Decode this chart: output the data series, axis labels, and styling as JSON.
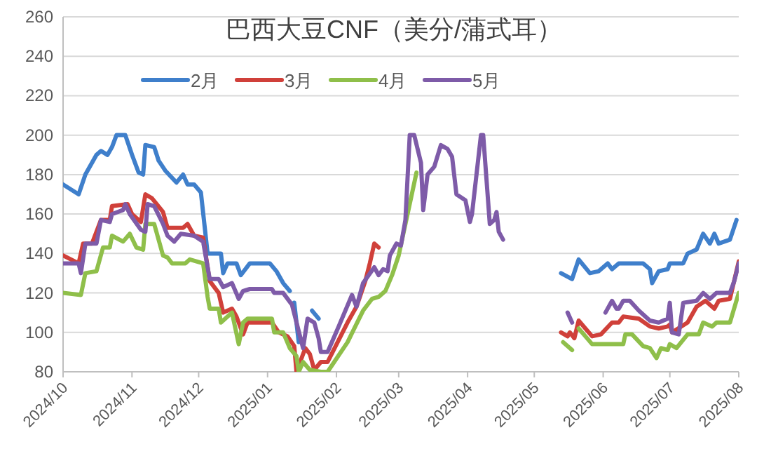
{
  "chart_data": {
    "type": "line",
    "title": "巴西大豆CNF（美分/蒲式耳）",
    "legend": "top",
    "grid": "y",
    "line_style": "solid",
    "marker": "none",
    "xlim": [
      "2024-10-01",
      "2025-08-01"
    ],
    "xticks": [
      {
        "value": "2024-10-01",
        "label": "2024/10"
      },
      {
        "value": "2024-11-01",
        "label": "2024/11"
      },
      {
        "value": "2024-12-01",
        "label": "2024/12"
      },
      {
        "value": "2025-01-01",
        "label": "2025/01"
      },
      {
        "value": "2025-02-01",
        "label": "2025/02"
      },
      {
        "value": "2025-03-01",
        "label": "2025/03"
      },
      {
        "value": "2025-04-01",
        "label": "2025/04"
      },
      {
        "value": "2025-05-01",
        "label": "2025/05"
      },
      {
        "value": "2025-06-01",
        "label": "2025/06"
      },
      {
        "value": "2025-07-01",
        "label": "2025/07"
      },
      {
        "value": "2025-08-01",
        "label": "2025/08"
      }
    ],
    "ylim": [
      80,
      260
    ],
    "yticks": [
      80,
      100,
      120,
      140,
      160,
      180,
      200,
      220,
      240,
      260
    ],
    "series": [
      {
        "name": "2月",
        "color": "#3f7fcb",
        "x": [
          "2024-10-01",
          "2024-10-08",
          "2024-10-11",
          "2024-10-16",
          "2024-10-18",
          "2024-10-21",
          "2024-10-23",
          "2024-10-25",
          "2024-10-29",
          "2024-11-01",
          "2024-11-04",
          "2024-11-06",
          "2024-11-07",
          "2024-11-11",
          "2024-11-13",
          "2024-11-16",
          "2024-11-21",
          "2024-11-24",
          "2024-11-26",
          "2024-11-29",
          "2024-12-02",
          "2024-12-05",
          "2024-12-11",
          "2024-12-12",
          "2024-12-14",
          "2024-12-18",
          "2024-12-20",
          "2024-12-24",
          "2025-01-02",
          "2025-01-05",
          "2025-01-08",
          "2025-01-11",
          null,
          "2025-01-13",
          "2025-01-15",
          null,
          "2025-01-21",
          "2025-01-24",
          null,
          "2025-05-13",
          "2025-05-18",
          "2025-05-21",
          "2025-05-26",
          "2025-05-30",
          "2025-06-03",
          "2025-06-05",
          "2025-06-08",
          "2025-06-19",
          "2025-06-22",
          "2025-06-23",
          "2025-06-26",
          "2025-06-30",
          "2025-07-01",
          "2025-07-07",
          "2025-07-09",
          "2025-07-13",
          "2025-07-16",
          "2025-07-19",
          "2025-07-21",
          "2025-07-23",
          "2025-07-28",
          "2025-07-31"
        ],
        "values": [
          175,
          170,
          180,
          190,
          192,
          190,
          194,
          200,
          200,
          190,
          181,
          180,
          195,
          194,
          187,
          182,
          176,
          180,
          175,
          175,
          171,
          140,
          140,
          130,
          135,
          135,
          129,
          135,
          135,
          131,
          125,
          121,
          null,
          115,
          95,
          null,
          111,
          107,
          null,
          130,
          127,
          137,
          130,
          131,
          135,
          132,
          135,
          135,
          132,
          125,
          131,
          132,
          135,
          135,
          140,
          142,
          150,
          145,
          150,
          145,
          147,
          157
        ]
      },
      {
        "name": "3月",
        "color": "#d0403a",
        "x": [
          "2024-10-01",
          "2024-10-08",
          "2024-10-10",
          "2024-10-14",
          "2024-10-18",
          "2024-10-22",
          "2024-10-23",
          "2024-10-30",
          "2024-11-01",
          "2024-11-05",
          "2024-11-07",
          "2024-11-10",
          "2024-11-15",
          "2024-11-17",
          "2024-11-21",
          "2024-11-24",
          "2024-11-26",
          "2024-11-29",
          "2024-12-03",
          "2024-12-06",
          "2024-12-10",
          "2024-12-12",
          "2024-12-16",
          "2024-12-18",
          "2024-12-21",
          "2024-12-23",
          "2025-01-03",
          "2025-01-06",
          "2025-01-10",
          "2025-01-13",
          "2025-01-14",
          "2025-01-18",
          "2025-01-20",
          "2025-01-22",
          "2025-01-25",
          "2025-01-28",
          "2025-02-06",
          "2025-02-10",
          "2025-02-14",
          "2025-02-16",
          "2025-02-18",
          "2025-02-20",
          null,
          "2025-05-13",
          "2025-05-16",
          "2025-05-17",
          "2025-05-19",
          "2025-05-21",
          "2025-05-24",
          "2025-05-27",
          "2025-05-31",
          "2025-06-05",
          "2025-06-08",
          "2025-06-10",
          "2025-06-17",
          "2025-06-22",
          "2025-06-26",
          "2025-06-30",
          "2025-07-01",
          "2025-07-02",
          "2025-07-09",
          "2025-07-13",
          "2025-07-17",
          "2025-07-21",
          "2025-07-23",
          "2025-07-28",
          "2025-08-01"
        ],
        "values": [
          139,
          135,
          145,
          145,
          157,
          157,
          164,
          165,
          160,
          156,
          170,
          168,
          161,
          153,
          153,
          153,
          155,
          149,
          148,
          126,
          120,
          110,
          112,
          108,
          99,
          105,
          105,
          100,
          98,
          93,
          80,
          92,
          89,
          81,
          85,
          85,
          105,
          113,
          126,
          135,
          145,
          143,
          null,
          100,
          98,
          100,
          97,
          106,
          102,
          98,
          99,
          105,
          105,
          108,
          107,
          103,
          102,
          103,
          104,
          100,
          105,
          113,
          116,
          112,
          116,
          117,
          136
        ]
      },
      {
        "name": "4月",
        "color": "#8fbf4a",
        "x": [
          "2024-10-01",
          "2024-10-09",
          "2024-10-11",
          "2024-10-16",
          "2024-10-19",
          "2024-10-22",
          "2024-10-23",
          "2024-10-28",
          "2024-10-31",
          "2024-11-03",
          "2024-11-06",
          "2024-11-07",
          "2024-11-11",
          "2024-11-15",
          "2024-11-17",
          "2024-11-19",
          "2024-11-25",
          "2024-11-27",
          "2024-12-03",
          "2024-12-05",
          "2024-12-06",
          "2024-12-10",
          "2024-12-11",
          "2024-12-16",
          "2024-12-19",
          "2024-12-21",
          "2024-12-23",
          "2025-01-03",
          "2025-01-04",
          "2025-01-08",
          "2025-01-11",
          "2025-01-14",
          "2025-01-15",
          "2025-01-17",
          "2025-01-20",
          "2025-01-25",
          "2025-01-28",
          "2025-02-06",
          "2025-02-13",
          "2025-02-17",
          "2025-02-20",
          "2025-02-23",
          "2025-02-26",
          "2025-03-01",
          "2025-03-09",
          null,
          "2025-05-14",
          "2025-05-18",
          null,
          "2025-05-21",
          "2025-05-24",
          "2025-05-27",
          "2025-06-10",
          "2025-06-11",
          "2025-06-14",
          "2025-06-19",
          "2025-06-22",
          "2025-06-25",
          "2025-06-27",
          "2025-06-30",
          "2025-07-01",
          "2025-07-04",
          "2025-07-09",
          "2025-07-14",
          "2025-07-16",
          "2025-07-20",
          "2025-07-22",
          "2025-07-28",
          "2025-08-01"
        ],
        "values": [
          120,
          119,
          130,
          131,
          143,
          143,
          149,
          146,
          150,
          143,
          142,
          155,
          155,
          139,
          138,
          135,
          135,
          137,
          135,
          118,
          112,
          112,
          105,
          110,
          94,
          105,
          107,
          107,
          100,
          100,
          92,
          88,
          80,
          85,
          81,
          80,
          80,
          95,
          111,
          117,
          118,
          121,
          129,
          139,
          181,
          null,
          95,
          91,
          null,
          102,
          98,
          94,
          94,
          99,
          99,
          93,
          92,
          87,
          92,
          91,
          94,
          92,
          99,
          99,
          105,
          103,
          105,
          105,
          120
        ]
      },
      {
        "name": "5月",
        "color": "#7e5ba8",
        "x": [
          "2024-10-01",
          "2024-10-08",
          "2024-10-09",
          "2024-10-11",
          "2024-10-16",
          "2024-10-18",
          "2024-10-22",
          "2024-10-23",
          "2024-10-28",
          "2024-10-29",
          "2024-10-31",
          "2024-11-05",
          "2024-11-07",
          "2024-11-08",
          "2024-11-11",
          "2024-11-15",
          "2024-11-17",
          "2024-11-20",
          "2024-11-23",
          "2024-11-29",
          "2024-12-03",
          "2024-12-06",
          "2024-12-10",
          "2024-12-12",
          "2024-12-16",
          "2024-12-19",
          "2024-12-21",
          "2024-12-24",
          "2025-01-03",
          "2025-01-04",
          "2025-01-08",
          "2025-01-12",
          "2025-01-17",
          "2025-01-19",
          "2025-01-22",
          "2025-01-24",
          "2025-01-25",
          "2025-01-28",
          "2025-02-02",
          "2025-02-08",
          "2025-02-10",
          "2025-02-13",
          "2025-02-18",
          "2025-02-20",
          "2025-02-22",
          "2025-02-24",
          "2025-02-25",
          "2025-02-28",
          "2025-03-02",
          "2025-03-04",
          "2025-03-06",
          "2025-03-08",
          "2025-03-11",
          "2025-03-12",
          "2025-03-14",
          "2025-03-17",
          "2025-03-20",
          "2025-03-23",
          "2025-03-25",
          "2025-03-27",
          "2025-03-31",
          "2025-04-02",
          "2025-04-03",
          "2025-04-07",
          "2025-04-08",
          "2025-04-11",
          "2025-04-13",
          "2025-04-14",
          "2025-04-15",
          "2025-04-17",
          null,
          "2025-05-16",
          "2025-05-18",
          null,
          "2025-06-02",
          "2025-06-05",
          "2025-06-07",
          "2025-06-08",
          "2025-06-10",
          "2025-06-13",
          "2025-06-17",
          "2025-06-22",
          "2025-06-26",
          "2025-06-30",
          "2025-07-01",
          "2025-07-02",
          "2025-07-05",
          "2025-07-07",
          "2025-07-13",
          "2025-07-16",
          "2025-07-19",
          "2025-07-22",
          "2025-07-28",
          "2025-07-30",
          "2025-08-01"
        ],
        "values": [
          135,
          135,
          130,
          145,
          145,
          157,
          156,
          160,
          162,
          165,
          160,
          152,
          151,
          165,
          164,
          155,
          149,
          146,
          150,
          149,
          146,
          127,
          127,
          123,
          125,
          117,
          121,
          122,
          122,
          120,
          120,
          114,
          92,
          107,
          105,
          97,
          90,
          90,
          103,
          119,
          113,
          125,
          133,
          129,
          132,
          131,
          139,
          145,
          144,
          157,
          200,
          200,
          186,
          162,
          180,
          184,
          195,
          193,
          189,
          170,
          167,
          156,
          160,
          200,
          200,
          155,
          157,
          161,
          151,
          147,
          null,
          110,
          105,
          null,
          110,
          116,
          112,
          112,
          116,
          116,
          111,
          106,
          105,
          107,
          115,
          100,
          99,
          115,
          116,
          120,
          117,
          120,
          120,
          126,
          135
        ]
      }
    ]
  }
}
